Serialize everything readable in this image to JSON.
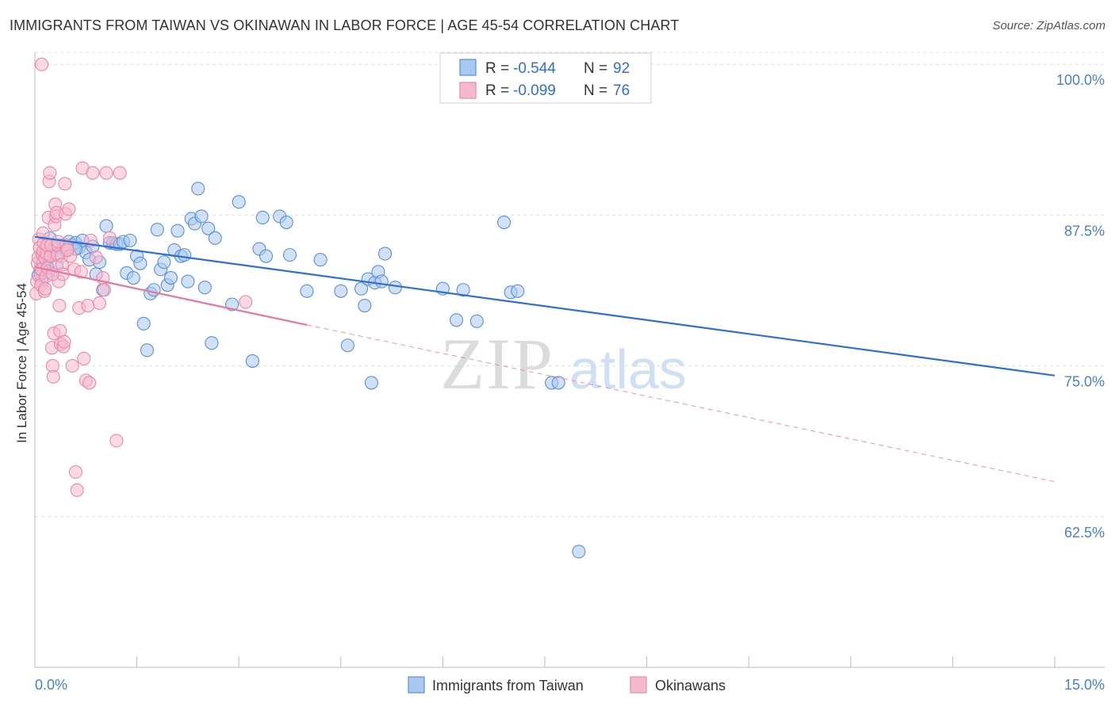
{
  "title": "IMMIGRANTS FROM TAIWAN VS OKINAWAN IN LABOR FORCE | AGE 45-54 CORRELATION CHART",
  "source": "Source: ZipAtlas.com",
  "colors": {
    "blue_fill": "#a9c8f0",
    "blue_stroke": "#5b8fd6",
    "blue_line": "#2e6fd6",
    "pink_fill": "#f5b9cc",
    "pink_stroke": "#e98aa8",
    "pink_line": "#e8769e",
    "axis_text": "#4a7fd0",
    "grid": "#e0e0e0"
  },
  "legend": {
    "rows": [
      {
        "r_label": "R =",
        "r_value": "-0.544",
        "n_label": "N =",
        "n_value": "92"
      },
      {
        "r_label": "R =",
        "r_value": "-0.099",
        "n_label": "N =",
        "n_value": "76"
      }
    ]
  },
  "chart_data": {
    "type": "scatter",
    "xlabel": "",
    "ylabel": "In Labor Force | Age 45-54",
    "xlim": [
      0,
      15
    ],
    "ylim": [
      50,
      101
    ],
    "x_tick_labels": [
      "0.0%",
      "15.0%"
    ],
    "y_ticks": [
      62.5,
      75.0,
      87.5,
      100.0
    ],
    "y_tick_labels": [
      "62.5%",
      "75.0%",
      "87.5%",
      "100.0%"
    ],
    "grid": true,
    "legend_position": "top-center",
    "series": [
      {
        "name": "Immigrants from Taiwan",
        "color": "#a9c8f0",
        "trend": {
          "x": [
            0.0,
            15.0
          ],
          "y": [
            85.7,
            74.2
          ],
          "style": "solid"
        },
        "points": [
          [
            0.05,
            82.5
          ],
          [
            0.08,
            83.0
          ],
          [
            0.1,
            82.0
          ],
          [
            0.12,
            83.5
          ],
          [
            0.15,
            84.0
          ],
          [
            0.18,
            83.2
          ],
          [
            0.2,
            82.8
          ],
          [
            0.25,
            84.5
          ],
          [
            0.3,
            84.8
          ],
          [
            0.35,
            84.2
          ],
          [
            0.4,
            85.0
          ],
          [
            0.45,
            84.6
          ],
          [
            0.5,
            85.3
          ],
          [
            0.55,
            85.0
          ],
          [
            0.6,
            85.2
          ],
          [
            0.65,
            84.8
          ],
          [
            0.7,
            85.4
          ],
          [
            0.75,
            84.4
          ],
          [
            0.8,
            83.8
          ],
          [
            0.85,
            84.9
          ],
          [
            0.9,
            82.6
          ],
          [
            0.95,
            83.6
          ],
          [
            1.0,
            81.3
          ],
          [
            1.05,
            86.6
          ],
          [
            1.1,
            85.2
          ],
          [
            1.15,
            85.2
          ],
          [
            1.2,
            85.1
          ],
          [
            1.25,
            85.1
          ],
          [
            1.3,
            85.3
          ],
          [
            1.35,
            82.7
          ],
          [
            1.4,
            85.4
          ],
          [
            1.45,
            82.3
          ],
          [
            1.5,
            84.1
          ],
          [
            1.55,
            83.5
          ],
          [
            1.6,
            78.5
          ],
          [
            1.65,
            76.3
          ],
          [
            1.7,
            81.0
          ],
          [
            1.75,
            81.3
          ],
          [
            1.8,
            86.3
          ],
          [
            1.85,
            83.0
          ],
          [
            1.9,
            83.6
          ],
          [
            1.95,
            81.7
          ],
          [
            2.0,
            82.3
          ],
          [
            2.05,
            84.6
          ],
          [
            2.1,
            86.2
          ],
          [
            2.15,
            84.1
          ],
          [
            2.2,
            84.2
          ],
          [
            2.25,
            82.0
          ],
          [
            2.3,
            87.2
          ],
          [
            2.35,
            86.8
          ],
          [
            2.4,
            89.7
          ],
          [
            2.45,
            87.4
          ],
          [
            2.5,
            81.5
          ],
          [
            2.55,
            86.4
          ],
          [
            2.6,
            76.9
          ],
          [
            2.65,
            85.6
          ],
          [
            2.9,
            80.1
          ],
          [
            3.0,
            88.6
          ],
          [
            3.2,
            75.4
          ],
          [
            3.3,
            84.7
          ],
          [
            3.35,
            87.3
          ],
          [
            3.4,
            84.1
          ],
          [
            3.6,
            87.4
          ],
          [
            3.7,
            86.9
          ],
          [
            3.75,
            84.2
          ],
          [
            4.0,
            81.2
          ],
          [
            4.2,
            83.8
          ],
          [
            4.5,
            81.2
          ],
          [
            4.6,
            76.7
          ],
          [
            4.8,
            81.4
          ],
          [
            4.85,
            80.0
          ],
          [
            4.9,
            82.2
          ],
          [
            4.95,
            73.6
          ],
          [
            5.0,
            81.9
          ],
          [
            5.05,
            82.8
          ],
          [
            5.1,
            82.0
          ],
          [
            5.15,
            84.3
          ],
          [
            5.3,
            81.5
          ],
          [
            6.0,
            81.4
          ],
          [
            6.2,
            78.8
          ],
          [
            6.3,
            81.3
          ],
          [
            6.5,
            78.7
          ],
          [
            6.9,
            86.9
          ],
          [
            7.0,
            81.1
          ],
          [
            7.1,
            81.2
          ],
          [
            7.6,
            73.6
          ],
          [
            7.7,
            73.6
          ],
          [
            8.0,
            59.6
          ],
          [
            0.22,
            85.6
          ],
          [
            0.32,
            83.3
          ],
          [
            0.42,
            84.9
          ],
          [
            0.6,
            84.7
          ]
        ]
      },
      {
        "name": "Okinawans",
        "color": "#f5b9cc",
        "trend": {
          "x": [
            0.0,
            4.0
          ],
          "y": [
            83.2,
            78.4
          ],
          "style": "solid",
          "dashed_extension_to": [
            15.0,
            65.4
          ]
        },
        "points": [
          [
            0.02,
            81.0
          ],
          [
            0.03,
            82.0
          ],
          [
            0.04,
            83.5
          ],
          [
            0.05,
            84.0
          ],
          [
            0.06,
            85.5
          ],
          [
            0.07,
            84.8
          ],
          [
            0.08,
            82.6
          ],
          [
            0.09,
            81.7
          ],
          [
            0.1,
            83.0
          ],
          [
            0.11,
            84.2
          ],
          [
            0.12,
            84.5
          ],
          [
            0.13,
            85.2
          ],
          [
            0.14,
            81.2
          ],
          [
            0.15,
            83.9
          ],
          [
            0.16,
            82.4
          ],
          [
            0.17,
            84.3
          ],
          [
            0.18,
            85.0
          ],
          [
            0.19,
            83.1
          ],
          [
            0.2,
            87.3
          ],
          [
            0.21,
            90.3
          ],
          [
            0.22,
            91.0
          ],
          [
            0.23,
            84.1
          ],
          [
            0.24,
            85.0
          ],
          [
            0.25,
            76.5
          ],
          [
            0.26,
            75.0
          ],
          [
            0.27,
            74.1
          ],
          [
            0.28,
            77.7
          ],
          [
            0.29,
            86.7
          ],
          [
            0.3,
            88.4
          ],
          [
            0.31,
            87.4
          ],
          [
            0.32,
            87.7
          ],
          [
            0.33,
            84.2
          ],
          [
            0.34,
            85.0
          ],
          [
            0.35,
            82.0
          ],
          [
            0.36,
            80.0
          ],
          [
            0.37,
            77.9
          ],
          [
            0.38,
            76.8
          ],
          [
            0.39,
            84.1
          ],
          [
            0.4,
            83.4
          ],
          [
            0.41,
            82.6
          ],
          [
            0.42,
            76.6
          ],
          [
            0.43,
            77.0
          ],
          [
            0.44,
            90.1
          ],
          [
            0.45,
            87.6
          ],
          [
            0.46,
            85.0
          ],
          [
            0.47,
            84.8
          ],
          [
            0.5,
            88.0
          ],
          [
            0.55,
            75.0
          ],
          [
            0.6,
            66.2
          ],
          [
            0.62,
            64.7
          ],
          [
            0.65,
            79.8
          ],
          [
            0.7,
            91.4
          ],
          [
            0.72,
            75.6
          ],
          [
            0.75,
            73.8
          ],
          [
            0.78,
            80.0
          ],
          [
            0.8,
            73.6
          ],
          [
            0.82,
            85.4
          ],
          [
            0.85,
            91.0
          ],
          [
            0.9,
            84.0
          ],
          [
            0.95,
            80.2
          ],
          [
            1.0,
            82.3
          ],
          [
            1.02,
            81.3
          ],
          [
            1.05,
            91.0
          ],
          [
            1.1,
            85.6
          ],
          [
            1.2,
            68.8
          ],
          [
            1.25,
            91.0
          ],
          [
            0.1,
            100.0
          ],
          [
            0.52,
            84.1
          ],
          [
            0.58,
            83.0
          ],
          [
            0.68,
            82.8
          ],
          [
            0.15,
            81.4
          ],
          [
            0.26,
            82.6
          ],
          [
            0.34,
            85.3
          ],
          [
            0.48,
            84.6
          ],
          [
            3.1,
            80.3
          ],
          [
            0.12,
            86.0
          ]
        ]
      }
    ]
  },
  "bottom_legend": {
    "items": [
      {
        "label": "Immigrants from Taiwan"
      },
      {
        "label": "Okinawans"
      }
    ]
  },
  "watermark": {
    "zip": "ZIP",
    "atlas": "atlas"
  }
}
